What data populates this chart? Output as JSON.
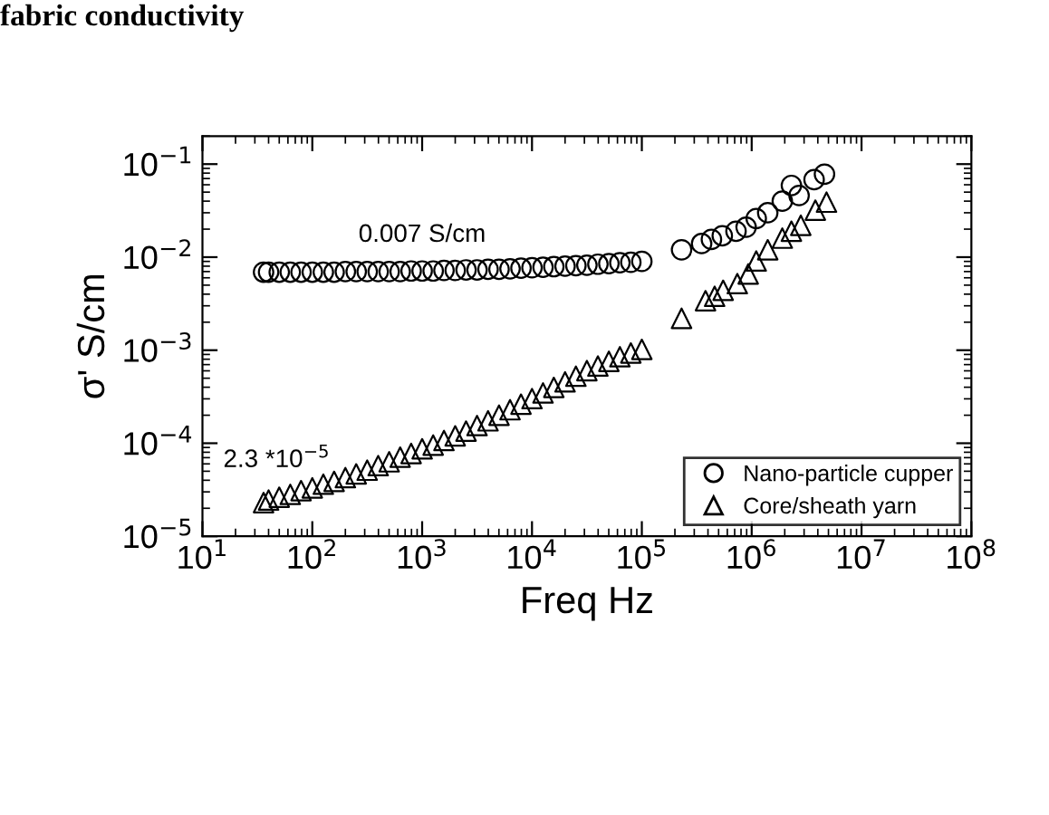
{
  "chart_data": {
    "type": "scatter",
    "title": "fabric conductivity",
    "xlabel": "Freq Hz",
    "ylabel": "σ' S/cm",
    "log": "xy",
    "grid": false,
    "legend": "bottom right",
    "xlim": [
      10,
      100000000
    ],
    "ylim": [
      1e-05,
      0.2
    ],
    "xticks": [
      {
        "value": 10,
        "label": "10$^{1}$"
      },
      {
        "value": 100,
        "label": "10$^{2}$"
      },
      {
        "value": 1000,
        "label": "10$^{3}$"
      },
      {
        "value": 10000,
        "label": "10$^{4}$"
      },
      {
        "value": 100000,
        "label": "10$^{5}$"
      },
      {
        "value": 1000000,
        "label": "10$^{6}$"
      },
      {
        "value": 10000000,
        "label": "10$^{7}$"
      },
      {
        "value": 100000000,
        "label": "10$^{8}$"
      }
    ],
    "yticks": [
      {
        "value": 1e-05,
        "label": "10$^{−5}$"
      },
      {
        "value": 0.0001,
        "label": "10$^{−4}$"
      },
      {
        "value": 0.001,
        "label": "10$^{−3}$"
      },
      {
        "value": 0.01,
        "label": "10$^{−2}$"
      },
      {
        "value": 0.1,
        "label": "10$^{−1}$"
      }
    ],
    "annotations": [
      {
        "text": "0.007 S/cm",
        "x": 1000,
        "y": 0.0069
      },
      {
        "text": "2.3 *10$^{−5}$",
        "x": 36,
        "y": 2.3e-05
      }
    ],
    "series": [
      {
        "name": "Nano-particle cupper",
        "color": "#000000",
        "marker": "circle",
        "x": [
          36,
          40,
          50,
          63,
          79,
          100,
          126,
          158,
          200,
          251,
          316,
          398,
          501,
          631,
          794,
          1000,
          1260,
          1580,
          2000,
          2510,
          3160,
          3980,
          5010,
          6310,
          7940,
          10000,
          12600,
          15800,
          20000,
          25100,
          31600,
          39800,
          50100,
          63100,
          79400,
          100000,
          230000,
          350000,
          430000,
          540000,
          720000,
          890000,
          1100000,
          1400000,
          1900000,
          2300000,
          2700000,
          3700000,
          4600000
        ],
        "values": [
          0.0069,
          0.0069,
          0.0069,
          0.0069,
          0.0069,
          0.0069,
          0.0069,
          0.0069,
          0.007,
          0.007,
          0.007,
          0.007,
          0.007,
          0.007,
          0.0071,
          0.0071,
          0.0071,
          0.0072,
          0.0072,
          0.0073,
          0.0073,
          0.0074,
          0.0074,
          0.0075,
          0.0076,
          0.0077,
          0.0078,
          0.0079,
          0.008,
          0.0081,
          0.0082,
          0.0084,
          0.0085,
          0.0087,
          0.0088,
          0.009,
          0.012,
          0.014,
          0.0155,
          0.017,
          0.019,
          0.021,
          0.026,
          0.03,
          0.04,
          0.059,
          0.046,
          0.068,
          0.078
        ]
      },
      {
        "name": "Core/sheath yarn",
        "color": "#000000",
        "marker": "triangle",
        "x": [
          36,
          40,
          50,
          63,
          79,
          100,
          126,
          158,
          200,
          251,
          316,
          398,
          501,
          631,
          794,
          1000,
          1260,
          1580,
          2000,
          2510,
          3160,
          3980,
          5010,
          6310,
          7940,
          10000,
          12600,
          15800,
          20000,
          25100,
          31600,
          39800,
          50100,
          63100,
          79400,
          100000,
          230000,
          380000,
          460000,
          550000,
          740000,
          930000,
          1100000,
          1400000,
          1900000,
          2300000,
          2800000,
          3800000,
          4800000
        ],
        "values": [
          2.3e-05,
          2.45e-05,
          2.63e-05,
          2.82e-05,
          3.09e-05,
          3.31e-05,
          3.63e-05,
          3.89e-05,
          4.27e-05,
          4.68e-05,
          5.13e-05,
          5.75e-05,
          6.31e-05,
          7.08e-05,
          7.76e-05,
          8.71e-05,
          9.55e-05,
          0.000107,
          0.00012,
          0.000135,
          0.000155,
          0.000174,
          0.0002,
          0.000229,
          0.000263,
          0.000302,
          0.000347,
          0.000398,
          0.000457,
          0.000525,
          0.000603,
          0.000676,
          0.000759,
          0.000851,
          0.000933,
          0.00102,
          0.0022,
          0.0034,
          0.0038,
          0.0044,
          0.0052,
          0.0066,
          0.0091,
          0.012,
          0.016,
          0.019,
          0.022,
          0.032,
          0.039
        ]
      }
    ]
  }
}
